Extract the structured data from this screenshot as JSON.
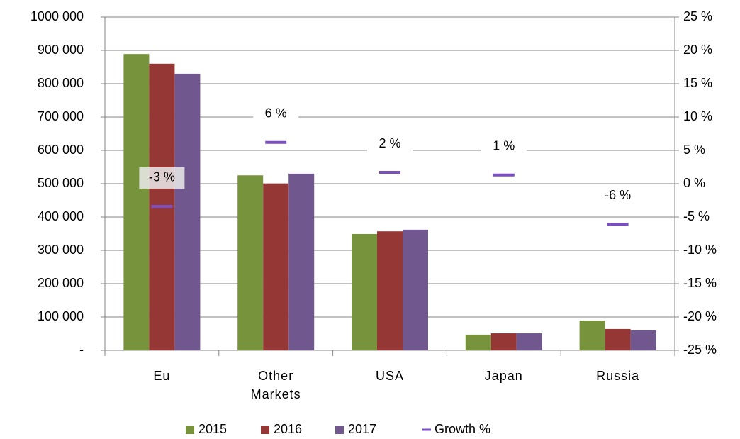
{
  "chart_data": {
    "type": "bar",
    "categories": [
      "Eu",
      "Other Markets",
      "USA",
      "Japan",
      "Russia"
    ],
    "series": [
      {
        "name": "2015",
        "color": "#77933c",
        "values": [
          889000,
          525000,
          349000,
          47000,
          89000
        ]
      },
      {
        "name": "2016",
        "color": "#953735",
        "values": [
          860000,
          500000,
          357000,
          51000,
          64000
        ]
      },
      {
        "name": "2017",
        "color": "#70588f",
        "values": [
          830000,
          530000,
          362000,
          51000,
          60000
        ]
      },
      {
        "name": "Growth %",
        "color": "#7b4fc0",
        "axis": "y2",
        "values": [
          -3.4,
          6.2,
          1.7,
          1.3,
          -6.1
        ],
        "value_labels": [
          "-3 %",
          "6 %",
          "2 %",
          "1 %",
          "-6 %"
        ]
      }
    ],
    "ylim": [
      0,
      1000000
    ],
    "yticks": [
      {
        "value": 0,
        "label": "-"
      },
      {
        "value": 100000,
        "label": "100 000"
      },
      {
        "value": 200000,
        "label": "200 000"
      },
      {
        "value": 300000,
        "label": "300 000"
      },
      {
        "value": 400000,
        "label": "400 000"
      },
      {
        "value": 500000,
        "label": "500 000"
      },
      {
        "value": 600000,
        "label": "600 000"
      },
      {
        "value": 700000,
        "label": "700 000"
      },
      {
        "value": 800000,
        "label": "800 000"
      },
      {
        "value": 900000,
        "label": "900 000"
      },
      {
        "value": 1000000,
        "label": "1000 000"
      }
    ],
    "y2lim": [
      -25,
      25
    ],
    "y2ticks": [
      {
        "value": -25,
        "label": "-25 %"
      },
      {
        "value": -20,
        "label": "-20 %"
      },
      {
        "value": -15,
        "label": "-15 %"
      },
      {
        "value": -10,
        "label": "-10 %"
      },
      {
        "value": -5,
        "label": "-5 %"
      },
      {
        "value": 0,
        "label": "0 %"
      },
      {
        "value": 5,
        "label": "5 %"
      },
      {
        "value": 10,
        "label": "10 %"
      },
      {
        "value": 15,
        "label": "15 %"
      },
      {
        "value": 20,
        "label": "20 %"
      },
      {
        "value": 25,
        "label": "25 %"
      }
    ],
    "grid": true,
    "legend": "bottom"
  }
}
